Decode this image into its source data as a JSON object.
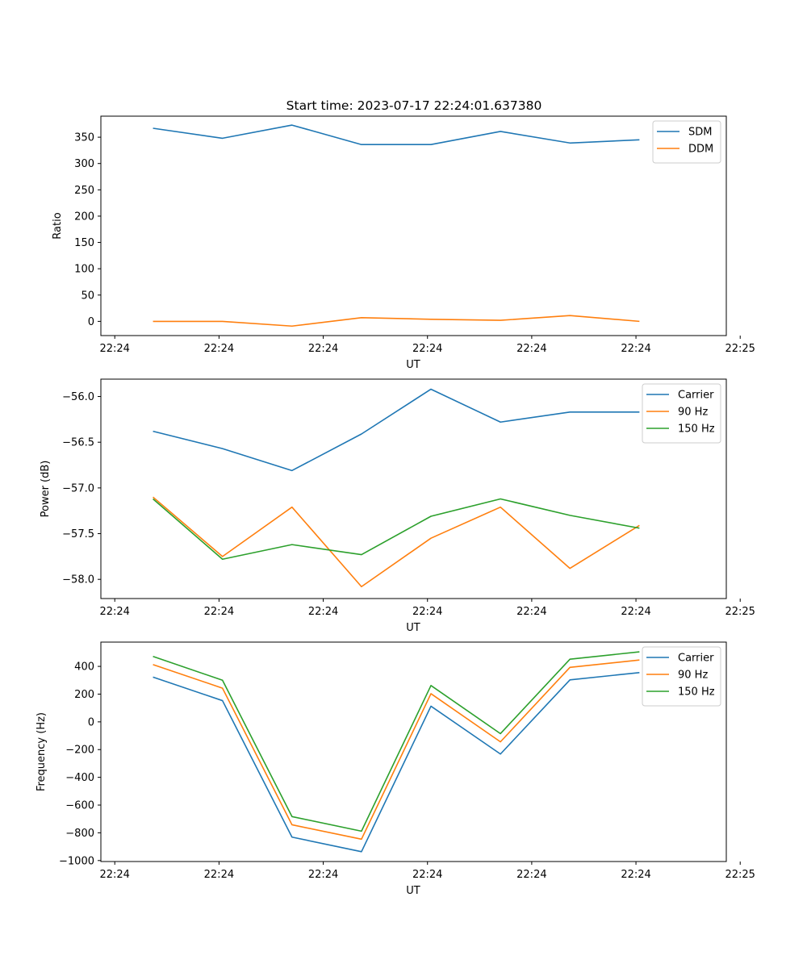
{
  "figure_title": "Start time: 2023-07-17 22:24:01.637380",
  "colors": {
    "blue": "#1f77b4",
    "orange": "#ff7f0e",
    "green": "#2ca02c"
  },
  "chart_data": [
    {
      "type": "line",
      "title": "Start time: 2023-07-17 22:24:01.637380",
      "xlabel": "UT",
      "ylabel": "Ratio",
      "x": [
        0,
        1,
        2,
        3,
        4,
        5,
        6,
        7
      ],
      "xlim": [
        -0.75,
        8.25
      ],
      "ylim": [
        -27,
        390
      ],
      "xticks": [
        -0.55,
        0.95,
        2.45,
        3.95,
        5.45,
        6.95,
        8.45
      ],
      "xtick_labels": [
        "22:24",
        "22:24",
        "22:24",
        "22:24",
        "22:24",
        "22:24",
        "22:25"
      ],
      "yticks": [
        0,
        50,
        100,
        150,
        200,
        250,
        300,
        350
      ],
      "ytick_labels": [
        "0",
        "50",
        "100",
        "150",
        "200",
        "250",
        "300",
        "350"
      ],
      "legend_position": "top-right",
      "series": [
        {
          "name": "SDM",
          "color": "#1f77b4",
          "values": [
            367,
            348,
            373,
            336,
            336,
            361,
            339,
            345
          ]
        },
        {
          "name": "DDM",
          "color": "#ff7f0e",
          "values": [
            0,
            0,
            -9,
            7,
            4,
            2,
            11,
            0
          ]
        }
      ]
    },
    {
      "type": "line",
      "title": "",
      "xlabel": "UT",
      "ylabel": "Power (dB)",
      "x": [
        0,
        1,
        2,
        3,
        4,
        5,
        6,
        7
      ],
      "xlim": [
        -0.75,
        8.25
      ],
      "ylim": [
        -58.21,
        -55.81
      ],
      "xticks": [
        -0.55,
        0.95,
        2.45,
        3.95,
        5.45,
        6.95,
        8.45
      ],
      "xtick_labels": [
        "22:24",
        "22:24",
        "22:24",
        "22:24",
        "22:24",
        "22:24",
        "22:25"
      ],
      "yticks": [
        -56.0,
        -56.5,
        -57.0,
        -57.5,
        -58.0
      ],
      "ytick_labels": [
        "−56.0",
        "−56.5",
        "−57.0",
        "−57.5",
        "−58.0"
      ],
      "legend_position": "top-right",
      "series": [
        {
          "name": "Carrier",
          "color": "#1f77b4",
          "values": [
            -56.38,
            -56.57,
            -56.81,
            -56.41,
            -55.92,
            -56.28,
            -56.17,
            -56.17
          ]
        },
        {
          "name": "90 Hz",
          "color": "#ff7f0e",
          "values": [
            -57.1,
            -57.75,
            -57.21,
            -58.08,
            -57.55,
            -57.21,
            -57.88,
            -57.41
          ]
        },
        {
          "name": "150 Hz",
          "color": "#2ca02c",
          "values": [
            -57.12,
            -57.78,
            -57.62,
            -57.73,
            -57.31,
            -57.12,
            -57.3,
            -57.44
          ]
        }
      ]
    },
    {
      "type": "line",
      "title": "",
      "xlabel": "UT",
      "ylabel": "Frequency (Hz)",
      "x": [
        0,
        1,
        2,
        3,
        4,
        5,
        6,
        7
      ],
      "xlim": [
        -0.75,
        8.25
      ],
      "ylim": [
        -1007,
        575
      ],
      "xticks": [
        -0.55,
        0.95,
        2.45,
        3.95,
        5.45,
        6.95,
        8.45
      ],
      "xtick_labels": [
        "22:24",
        "22:24",
        "22:24",
        "22:24",
        "22:24",
        "22:24",
        "22:25"
      ],
      "yticks": [
        400,
        200,
        0,
        -200,
        -400,
        -600,
        -800,
        -1000
      ],
      "ytick_labels": [
        "400",
        "200",
        "0",
        "−200",
        "−400",
        "−600",
        "−800",
        "−1000"
      ],
      "legend_position": "top-right",
      "series": [
        {
          "name": "Carrier",
          "color": "#1f77b4",
          "values": [
            323,
            153,
            -831,
            -936,
            113,
            -232,
            303,
            355
          ]
        },
        {
          "name": "90 Hz",
          "color": "#ff7f0e",
          "values": [
            413,
            243,
            -742,
            -846,
            203,
            -144,
            393,
            446
          ]
        },
        {
          "name": "150 Hz",
          "color": "#2ca02c",
          "values": [
            472,
            300,
            -683,
            -788,
            262,
            -85,
            452,
            505
          ]
        }
      ]
    }
  ]
}
